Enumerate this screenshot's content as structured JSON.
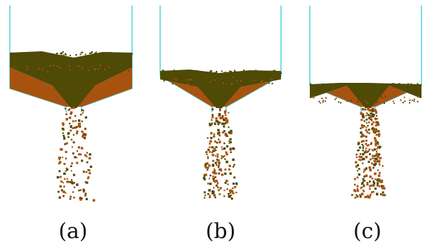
{
  "figure": {
    "panels": [
      {
        "id": "a",
        "caption": "(a)"
      },
      {
        "id": "b",
        "caption": "(b)"
      },
      {
        "id": "c",
        "caption": "(c)"
      }
    ]
  },
  "colors": {
    "wall": "#5ad6e0",
    "top_layer": "#4f4a06",
    "bottom_layer": "#a8520f",
    "particle_dark": "#4f4a06",
    "particle_light": "#a8520f"
  }
}
